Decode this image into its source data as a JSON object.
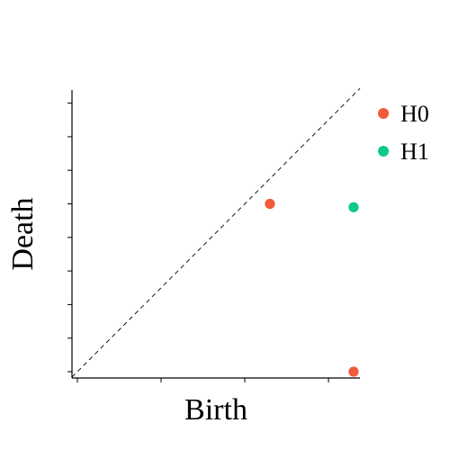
{
  "chart_data": {
    "type": "scatter",
    "xlabel": "Birth",
    "ylabel": "Death",
    "xlim": [
      0,
      1.72
    ],
    "ylim": [
      0,
      1.72
    ],
    "xticks": [
      0,
      0.5,
      1.0,
      1.5
    ],
    "yticks": [
      0,
      0.2,
      0.4,
      0.6,
      0.8,
      1.0,
      1.2,
      1.4,
      1.6
    ],
    "grid": false,
    "diagonal": "dashed",
    "legend": "top-right",
    "series": [
      {
        "name": "H0",
        "color": "#f15a3a",
        "points": [
          {
            "x": 1.15,
            "y": 1.0
          },
          {
            "x": 1.65,
            "y": 0.0
          }
        ]
      },
      {
        "name": "H1",
        "color": "#0ec98f",
        "points": [
          {
            "x": 1.65,
            "y": 0.98
          }
        ]
      }
    ]
  }
}
